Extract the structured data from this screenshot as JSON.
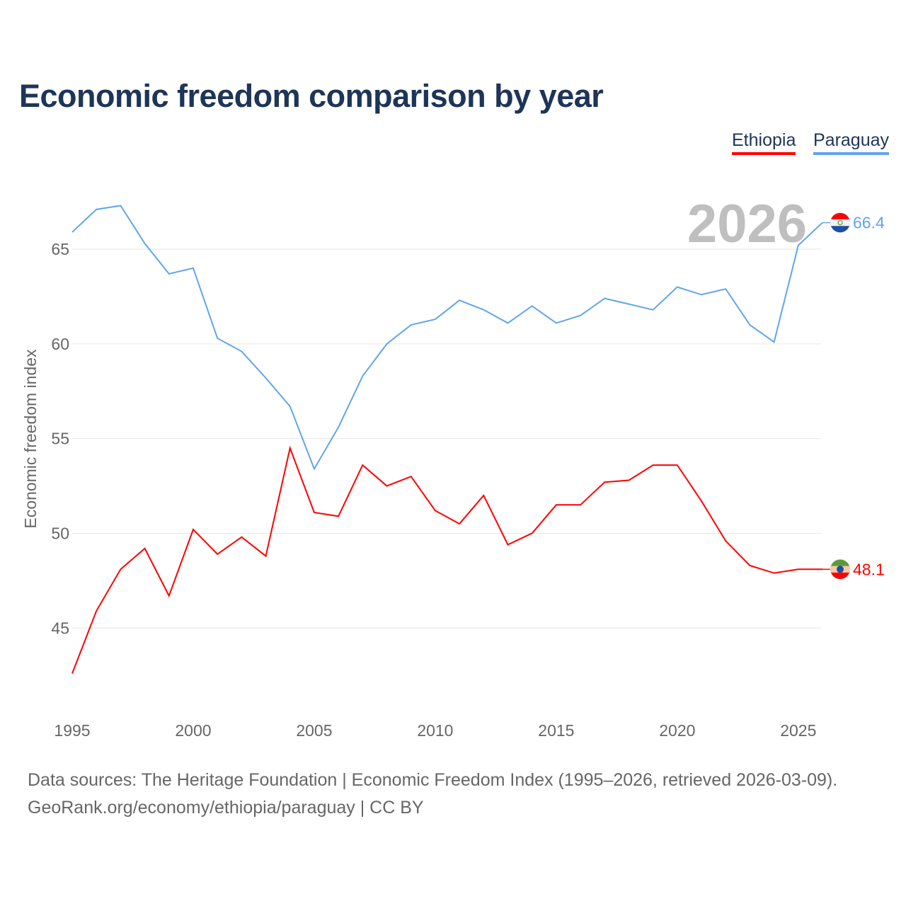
{
  "chart_data": {
    "type": "line",
    "title": "Economic freedom comparison by year",
    "xlabel": "",
    "ylabel": "Economic freedom index",
    "x": [
      1995,
      1996,
      1997,
      1998,
      1999,
      2000,
      2001,
      2002,
      2003,
      2004,
      2005,
      2006,
      2007,
      2008,
      2009,
      2010,
      2011,
      2012,
      2013,
      2014,
      2015,
      2016,
      2017,
      2018,
      2019,
      2020,
      2021,
      2022,
      2023,
      2024,
      2025,
      2026
    ],
    "xlim": [
      1995,
      2026
    ],
    "ylim": [
      40.6,
      69
    ],
    "xticks": [
      "1995",
      "2000",
      "2005",
      "2010",
      "2015",
      "2020",
      "2025"
    ],
    "yticks": [
      "45",
      "50",
      "55",
      "60",
      "65"
    ],
    "grid": true,
    "legend_position": "top-right",
    "year_watermark": "2026",
    "series": [
      {
        "name": "Ethiopia",
        "color": "#ff0000",
        "end_label": "48.1",
        "values": [
          42.6,
          45.9,
          48.1,
          49.2,
          46.7,
          50.2,
          48.9,
          49.8,
          48.8,
          54.5,
          51.1,
          50.9,
          53.6,
          52.5,
          53.0,
          51.2,
          50.5,
          52.0,
          49.4,
          50.0,
          51.5,
          51.5,
          52.7,
          52.8,
          53.6,
          53.6,
          51.7,
          49.6,
          48.3,
          47.9,
          48.1,
          48.1
        ]
      },
      {
        "name": "Paraguay",
        "color": "#60a5ec",
        "end_label": "66.4",
        "values": [
          65.9,
          67.1,
          67.3,
          65.3,
          63.7,
          64.0,
          60.3,
          59.6,
          58.2,
          56.7,
          53.4,
          55.6,
          58.3,
          60.0,
          61.0,
          61.3,
          62.3,
          61.8,
          61.1,
          62.0,
          61.1,
          61.5,
          62.4,
          62.1,
          61.8,
          63.0,
          62.6,
          62.9,
          61.0,
          60.1,
          65.2,
          66.4
        ]
      }
    ]
  },
  "footer": {
    "line1": "Data sources: The Heritage Foundation | Economic Freedom Index (1995–2026, retrieved 2026-03-09).",
    "line2": "GeoRank.org/economy/ethiopia/paraguay | CC BY"
  }
}
